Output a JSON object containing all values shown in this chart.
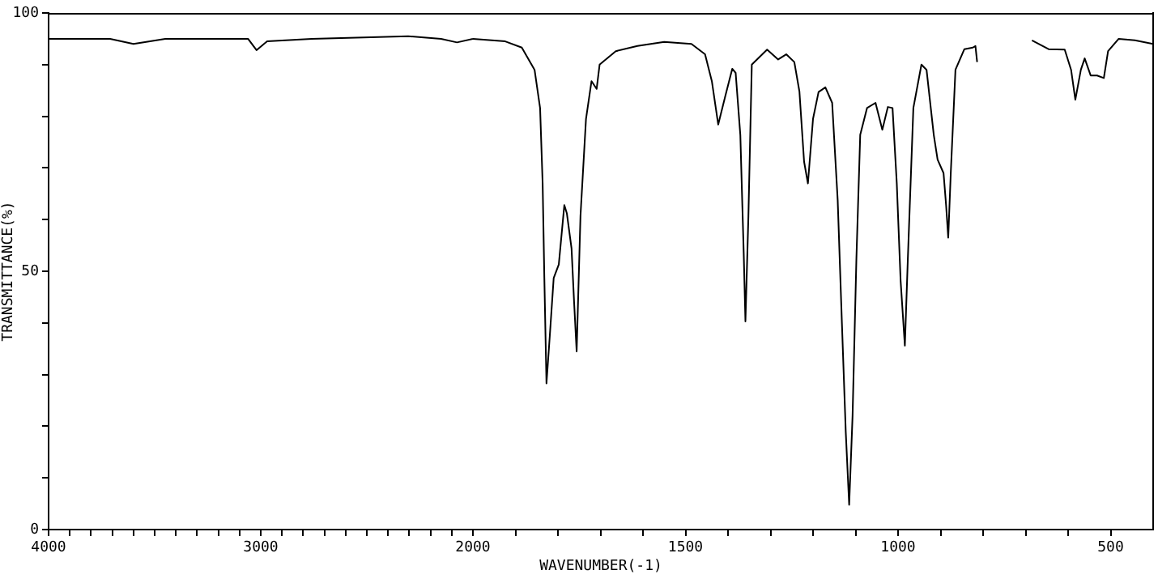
{
  "chart_data": [
    {
      "type": "line",
      "ylabel": "TRANSMITTANCE(%)",
      "xlabel": "WAVENUMBER(-1)",
      "xlim": [
        4000,
        2000
      ],
      "ylim": [
        0,
        100
      ],
      "xticks": [
        4000,
        {
          "value": 3900,
          "label": null
        },
        {
          "value": 3800,
          "label": null
        },
        {
          "value": 3700,
          "label": null
        },
        {
          "value": 3600,
          "label": null
        },
        {
          "value": 3500,
          "label": null
        },
        {
          "value": 3400,
          "label": null
        },
        {
          "value": 3300,
          "label": null
        },
        {
          "value": 3200,
          "label": null
        },
        {
          "value": 3100,
          "label": null
        },
        3000,
        {
          "value": 2900,
          "label": null
        },
        {
          "value": 2800,
          "label": null
        },
        {
          "value": 2700,
          "label": null
        },
        {
          "value": 2600,
          "label": null
        },
        {
          "value": 2500,
          "label": null
        },
        {
          "value": 2400,
          "label": null
        },
        {
          "value": 2300,
          "label": null
        },
        {
          "value": 2200,
          "label": null
        },
        {
          "value": 2100,
          "label": null
        },
        2000
      ],
      "yticks": [
        0,
        {
          "value": 10,
          "label": null
        },
        {
          "value": 20,
          "label": null
        },
        {
          "value": 30,
          "label": null
        },
        {
          "value": 40,
          "label": null
        },
        50,
        {
          "value": 60,
          "label": null
        },
        {
          "value": 70,
          "label": null
        },
        {
          "value": 80,
          "label": null
        },
        {
          "value": 90,
          "label": null
        },
        100
      ],
      "series": [
        {
          "color": "#000000",
          "x": [
            4000,
            3710,
            3600,
            3450,
            3060,
            3020,
            2970,
            2760,
            2305,
            2150,
            2075,
            2000
          ],
          "values": [
            95,
            95,
            94,
            95,
            95,
            92.8,
            94.5,
            95,
            95.5,
            95,
            94.3,
            95
          ]
        }
      ]
    },
    {
      "type": "line",
      "tick_labels": "x",
      "xlim": [
        2000,
        400
      ],
      "ylim": [
        0,
        100
      ],
      "xticks": [
        {
          "value": 1900,
          "label": null
        },
        {
          "value": 1800,
          "label": null
        },
        {
          "value": 1700,
          "label": null
        },
        {
          "value": 1600,
          "label": null
        },
        1500,
        {
          "value": 1400,
          "label": null
        },
        {
          "value": 1300,
          "label": null
        },
        {
          "value": 1200,
          "label": null
        },
        {
          "value": 1100,
          "label": null
        },
        1000,
        {
          "value": 900,
          "label": null
        },
        {
          "value": 800,
          "label": null
        },
        {
          "value": 700,
          "label": null
        },
        {
          "value": 600,
          "label": null
        },
        500
      ],
      "series": [
        {
          "color": "#000000",
          "x": [
            2000,
            1924,
            1885,
            1855,
            1842,
            1836,
            1832,
            1827,
            1819,
            1810,
            1798,
            1785,
            1779,
            1768,
            1762,
            1756,
            1747,
            1734,
            1721,
            1709,
            1702,
            1664,
            1613,
            1550,
            1486,
            1454,
            1438,
            1423,
            1407,
            1390,
            1382,
            1371,
            1363,
            1359,
            1352,
            1344,
            1308,
            1282,
            1263,
            1244,
            1232,
            1221,
            1212,
            1200,
            1187,
            1171,
            1155,
            1142,
            1132,
            1123,
            1115,
            1107,
            1098,
            1089,
            1073,
            1053,
            1037,
            1024,
            1013,
            1003,
            994,
            984,
            977,
            964,
            945,
            933,
            916,
            907,
            893,
            887,
            882,
            876,
            865,
            844,
            824,
            818,
            814,
            750,
            685,
            646,
            608,
            593,
            583,
            570,
            561,
            547,
            532,
            516,
            506,
            481,
            443,
            400
          ],
          "values": [
            95,
            94.5,
            93.3,
            89,
            81.6,
            67,
            48.7,
            28.3,
            37.7,
            48.7,
            51.3,
            62.8,
            61.2,
            54.4,
            44,
            34.5,
            60.7,
            79.5,
            86.8,
            85.3,
            90,
            92.6,
            93.6,
            94.4,
            94,
            92,
            86.8,
            78.4,
            83.7,
            89.2,
            88.4,
            76.4,
            53.4,
            40.3,
            60.7,
            90,
            92.9,
            91,
            92,
            90.5,
            84.8,
            71.2,
            67,
            79.5,
            84.7,
            85.6,
            82.6,
            63.8,
            39.8,
            18.9,
            4.8,
            22,
            52.4,
            76.4,
            81.6,
            82.6,
            77.4,
            81.8,
            81.6,
            67,
            48.2,
            35.6,
            52.4,
            81.6,
            90,
            89,
            76.4,
            71.6,
            69,
            62.8,
            56.5,
            69,
            89,
            93,
            93.3,
            93.6,
            90.5,
            null,
            94.7,
            93,
            92.9,
            89,
            83.2,
            89,
            91.2,
            87.9,
            87.9,
            87.4,
            92.6,
            95,
            94.7,
            94
          ]
        }
      ]
    }
  ]
}
